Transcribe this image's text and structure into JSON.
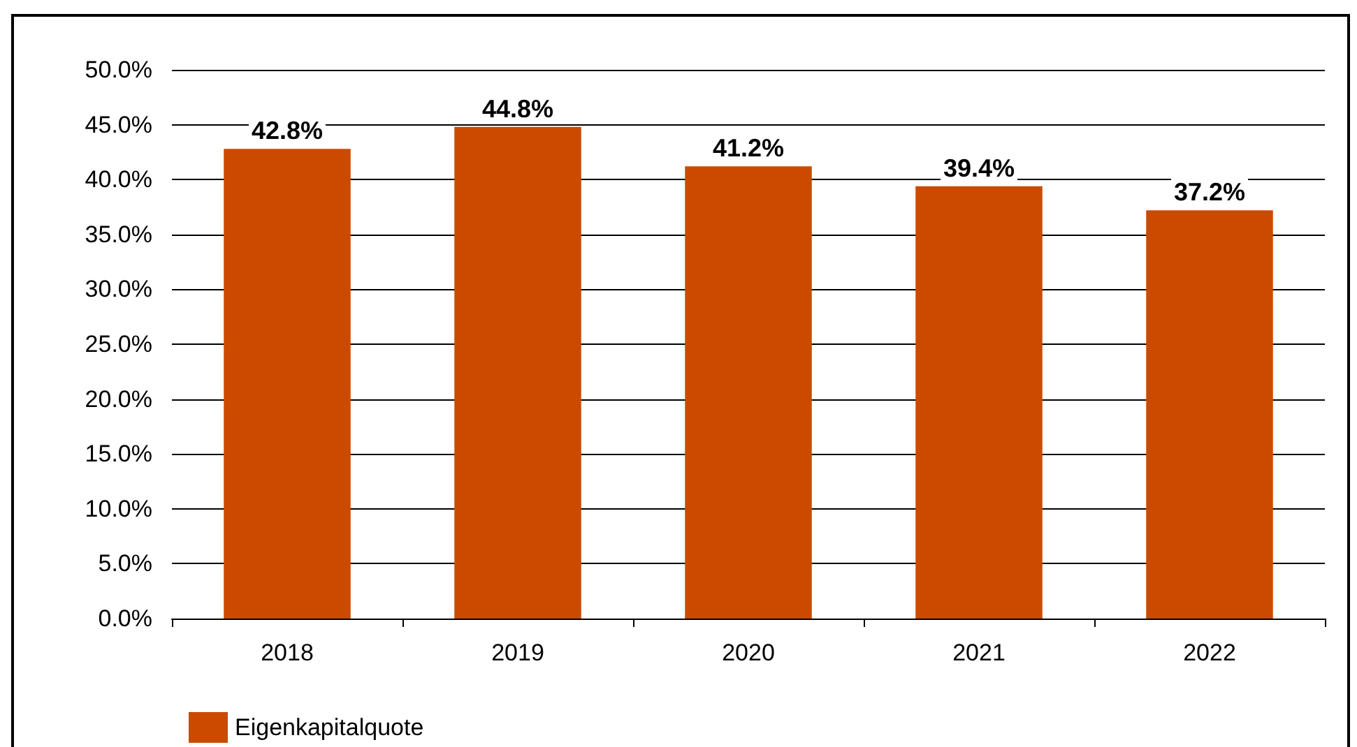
{
  "chart_data": {
    "type": "bar",
    "categories": [
      "2018",
      "2019",
      "2020",
      "2021",
      "2022"
    ],
    "series": [
      {
        "name": "Eigenkapitalquote",
        "color": "#cc4a00",
        "values": [
          42.8,
          44.8,
          41.2,
          39.4,
          37.2
        ],
        "value_labels": [
          "42.8%",
          "44.8%",
          "41.2%",
          "39.4%",
          "37.2%"
        ]
      }
    ],
    "ylim": [
      0,
      50
    ],
    "yticks": [
      {
        "value": 0,
        "label": "0.0%"
      },
      {
        "value": 5,
        "label": "5.0%"
      },
      {
        "value": 10,
        "label": "10.0%"
      },
      {
        "value": 15,
        "label": "15.0%"
      },
      {
        "value": 20,
        "label": "20.0%"
      },
      {
        "value": 25,
        "label": "25.0%"
      },
      {
        "value": 30,
        "label": "30.0%"
      },
      {
        "value": 35,
        "label": "35.0%"
      },
      {
        "value": 40,
        "label": "40.0%"
      },
      {
        "value": 45,
        "label": "45.0%"
      },
      {
        "value": 50,
        "label": "50.0%"
      }
    ],
    "grid": "y",
    "legend": "bottom left"
  }
}
